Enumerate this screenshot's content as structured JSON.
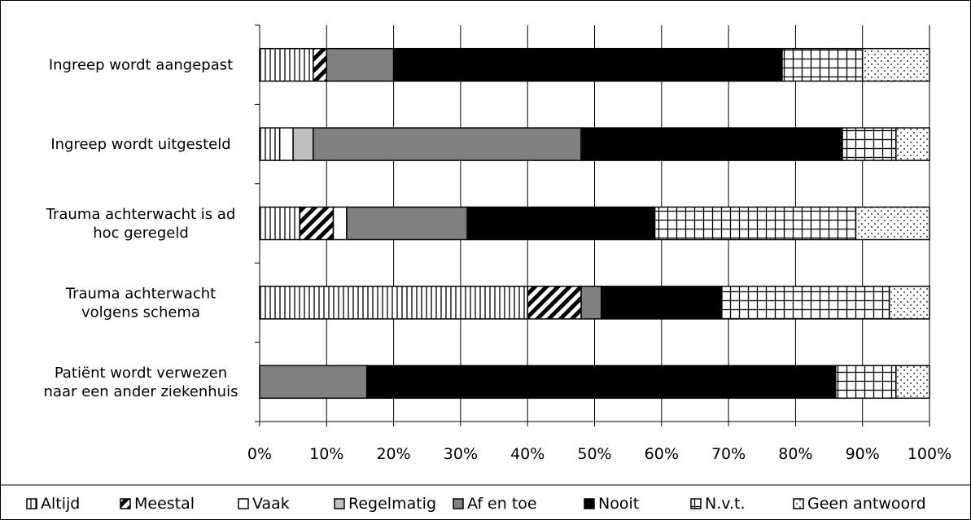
{
  "chart_data": {
    "type": "bar",
    "orientation": "horizontal",
    "stacked": "percent",
    "categories": [
      "Ingreep wordt aangepast",
      "Ingreep wordt uitgesteld",
      "Trauma achterwacht is ad hoc geregeld",
      "Trauma achterwacht volgens schema",
      "Patiënt wordt verwezen naar een ander ziekenhuis"
    ],
    "category_lines": [
      [
        "Ingreep wordt aangepast"
      ],
      [
        "Ingreep wordt uitgesteld"
      ],
      [
        "Trauma achterwacht is ad",
        "hoc geregeld"
      ],
      [
        "Trauma achterwacht",
        "volgens schema"
      ],
      [
        "Patiënt wordt verwezen",
        "naar een ander ziekenhuis"
      ]
    ],
    "series": [
      {
        "name": "Altijd",
        "pattern": "vertical",
        "values": [
          8,
          3,
          6,
          40,
          0
        ]
      },
      {
        "name": "Meestal",
        "pattern": "diagonal",
        "values": [
          2,
          0,
          5,
          8,
          0
        ]
      },
      {
        "name": "Vaak",
        "pattern": "white",
        "values": [
          0,
          2,
          2,
          0,
          0
        ]
      },
      {
        "name": "Regelmatig",
        "pattern": "lightgray",
        "values": [
          0,
          3,
          0,
          0,
          0
        ]
      },
      {
        "name": "Af en toe",
        "pattern": "gray",
        "values": [
          10,
          40,
          18,
          3,
          16
        ]
      },
      {
        "name": "Nooit",
        "pattern": "black",
        "values": [
          58,
          39,
          28,
          18,
          70
        ]
      },
      {
        "name": "N.v.t.",
        "pattern": "grid",
        "values": [
          12,
          8,
          30,
          25,
          9
        ]
      },
      {
        "name": "Geen antwoord",
        "pattern": "dots",
        "values": [
          10,
          5,
          11,
          6,
          5
        ]
      }
    ],
    "xticks": [
      "0%",
      "10%",
      "20%",
      "30%",
      "40%",
      "50%",
      "60%",
      "70%",
      "80%",
      "90%",
      "100%"
    ],
    "xlim": [
      0,
      100
    ],
    "grid": true,
    "legend_position": "bottom"
  },
  "colors": {
    "gray": "#808080",
    "lightgray": "#c0c0c0",
    "black": "#000000",
    "white": "#ffffff"
  }
}
